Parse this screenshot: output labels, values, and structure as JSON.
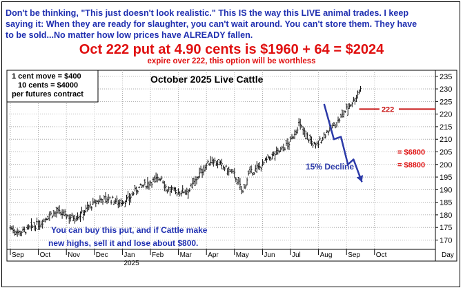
{
  "header": {
    "note_lines": [
      "Don't be thinking, \"This just doesn't look realistic.\" This IS the way this LIVE animal trades. I keep",
      "saying it: When they are ready for slaughter, you can't wait around. You can't store them. They have",
      "to be sold...No matter how low prices have ALREADY fallen."
    ],
    "headline": "Oct 222 put at 4.90 cents is $1960 + 64 = $2024",
    "subline": "expire over 222, this option will be worthless"
  },
  "chart_data": {
    "type": "candlestick",
    "title": "October 2025 Live Cattle",
    "legend_box": [
      "1 cent move = $400",
      "10 cents = $4000",
      "per futures contract"
    ],
    "y_ticks": [
      170,
      175,
      180,
      185,
      190,
      195,
      200,
      205,
      210,
      215,
      220,
      225,
      230,
      235
    ],
    "ylim": [
      166.3,
      237.4
    ],
    "x_labels": [
      "Sep",
      "Oct",
      "Nov",
      "Dec",
      "Jan",
      "Feb",
      "Mar",
      "Apr",
      "May",
      "Jun",
      "Jul",
      "Aug",
      "Sep",
      "Oct"
    ],
    "year_label": "2025",
    "x_unit_label": "Day",
    "strike_line": {
      "value": 222,
      "label": "222",
      "color": "#c81414"
    },
    "price_targets": [
      {
        "label": "= $6800",
        "value": 205
      },
      {
        "label": "= $8800",
        "value": 200
      }
    ],
    "projection_label": "15% Decline",
    "projection_path_months": [
      [
        11.2,
        224
      ],
      [
        11.55,
        210
      ],
      [
        11.8,
        211
      ],
      [
        12.05,
        200
      ],
      [
        12.25,
        202
      ],
      [
        12.55,
        193
      ]
    ],
    "bottom_note": [
      "You can buy this put, and if Cattle make",
      "new highs, sell it and lose about $800."
    ],
    "price_path_anchors": [
      [
        0.0,
        175
      ],
      [
        0.3,
        173
      ],
      [
        0.6,
        174
      ],
      [
        1.1,
        177
      ],
      [
        1.4,
        180
      ],
      [
        1.7,
        181
      ],
      [
        2.2,
        179
      ],
      [
        2.5,
        180
      ],
      [
        2.8,
        183
      ],
      [
        3.2,
        186
      ],
      [
        3.5,
        186.5
      ],
      [
        3.9,
        185
      ],
      [
        4.2,
        186
      ],
      [
        4.5,
        190
      ],
      [
        5.0,
        193
      ],
      [
        5.4,
        195
      ],
      [
        5.6,
        190
      ],
      [
        6.0,
        189
      ],
      [
        6.4,
        190
      ],
      [
        6.8,
        197
      ],
      [
        7.2,
        202
      ],
      [
        7.6,
        199
      ],
      [
        8.0,
        196
      ],
      [
        8.3,
        189
      ],
      [
        8.5,
        196
      ],
      [
        8.9,
        199
      ],
      [
        9.3,
        203
      ],
      [
        9.7,
        206
      ],
      [
        10.0,
        209
      ],
      [
        10.3,
        216
      ],
      [
        10.6,
        211
      ],
      [
        10.9,
        207
      ],
      [
        11.3,
        213
      ],
      [
        11.7,
        217
      ],
      [
        12.0,
        222
      ],
      [
        12.3,
        226
      ],
      [
        12.45,
        229
      ],
      [
        12.55,
        232
      ]
    ]
  }
}
